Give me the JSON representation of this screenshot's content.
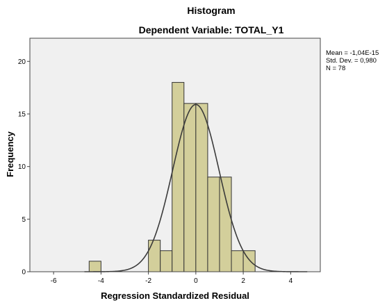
{
  "chart_data": {
    "type": "bar",
    "title": "Histogram",
    "subtitle": "Dependent Variable: TOTAL_Y1",
    "xlabel": "Regression Standardized Residual",
    "ylabel": "Frequency",
    "xlim": [
      -7,
      5.25
    ],
    "ylim": [
      0,
      22.2
    ],
    "x_ticks": [
      -6,
      -4,
      -2,
      0,
      2,
      4
    ],
    "y_ticks": [
      0,
      5,
      10,
      15,
      20
    ],
    "bin_width": 0.5,
    "bins": [
      {
        "start": -4.5,
        "end": -4.0,
        "value": 1
      },
      {
        "start": -2.0,
        "end": -1.5,
        "value": 3
      },
      {
        "start": -1.5,
        "end": -1.0,
        "value": 2
      },
      {
        "start": -1.0,
        "end": -0.5,
        "value": 18
      },
      {
        "start": -0.5,
        "end": 0.0,
        "value": 16
      },
      {
        "start": 0.0,
        "end": 0.5,
        "value": 16
      },
      {
        "start": 0.5,
        "end": 1.0,
        "value": 9
      },
      {
        "start": 1.0,
        "end": 1.5,
        "value": 9
      },
      {
        "start": 1.5,
        "end": 2.0,
        "value": 2
      },
      {
        "start": 2.0,
        "end": 2.5,
        "value": 2
      }
    ],
    "normal_curve": {
      "mean": 0,
      "std_dev": 0.98,
      "n": 78,
      "peak": 15.9
    },
    "stats": {
      "mean": "Mean = -1,04E-15",
      "std_dev": "Std. Dev. = 0,980",
      "n": "N = 78"
    },
    "colors": {
      "plot_background": "#f0f0f0",
      "bar_fill": "#d3cf9b",
      "bar_stroke": "#333333",
      "curve": "#3a3a3a"
    },
    "grid": false
  }
}
